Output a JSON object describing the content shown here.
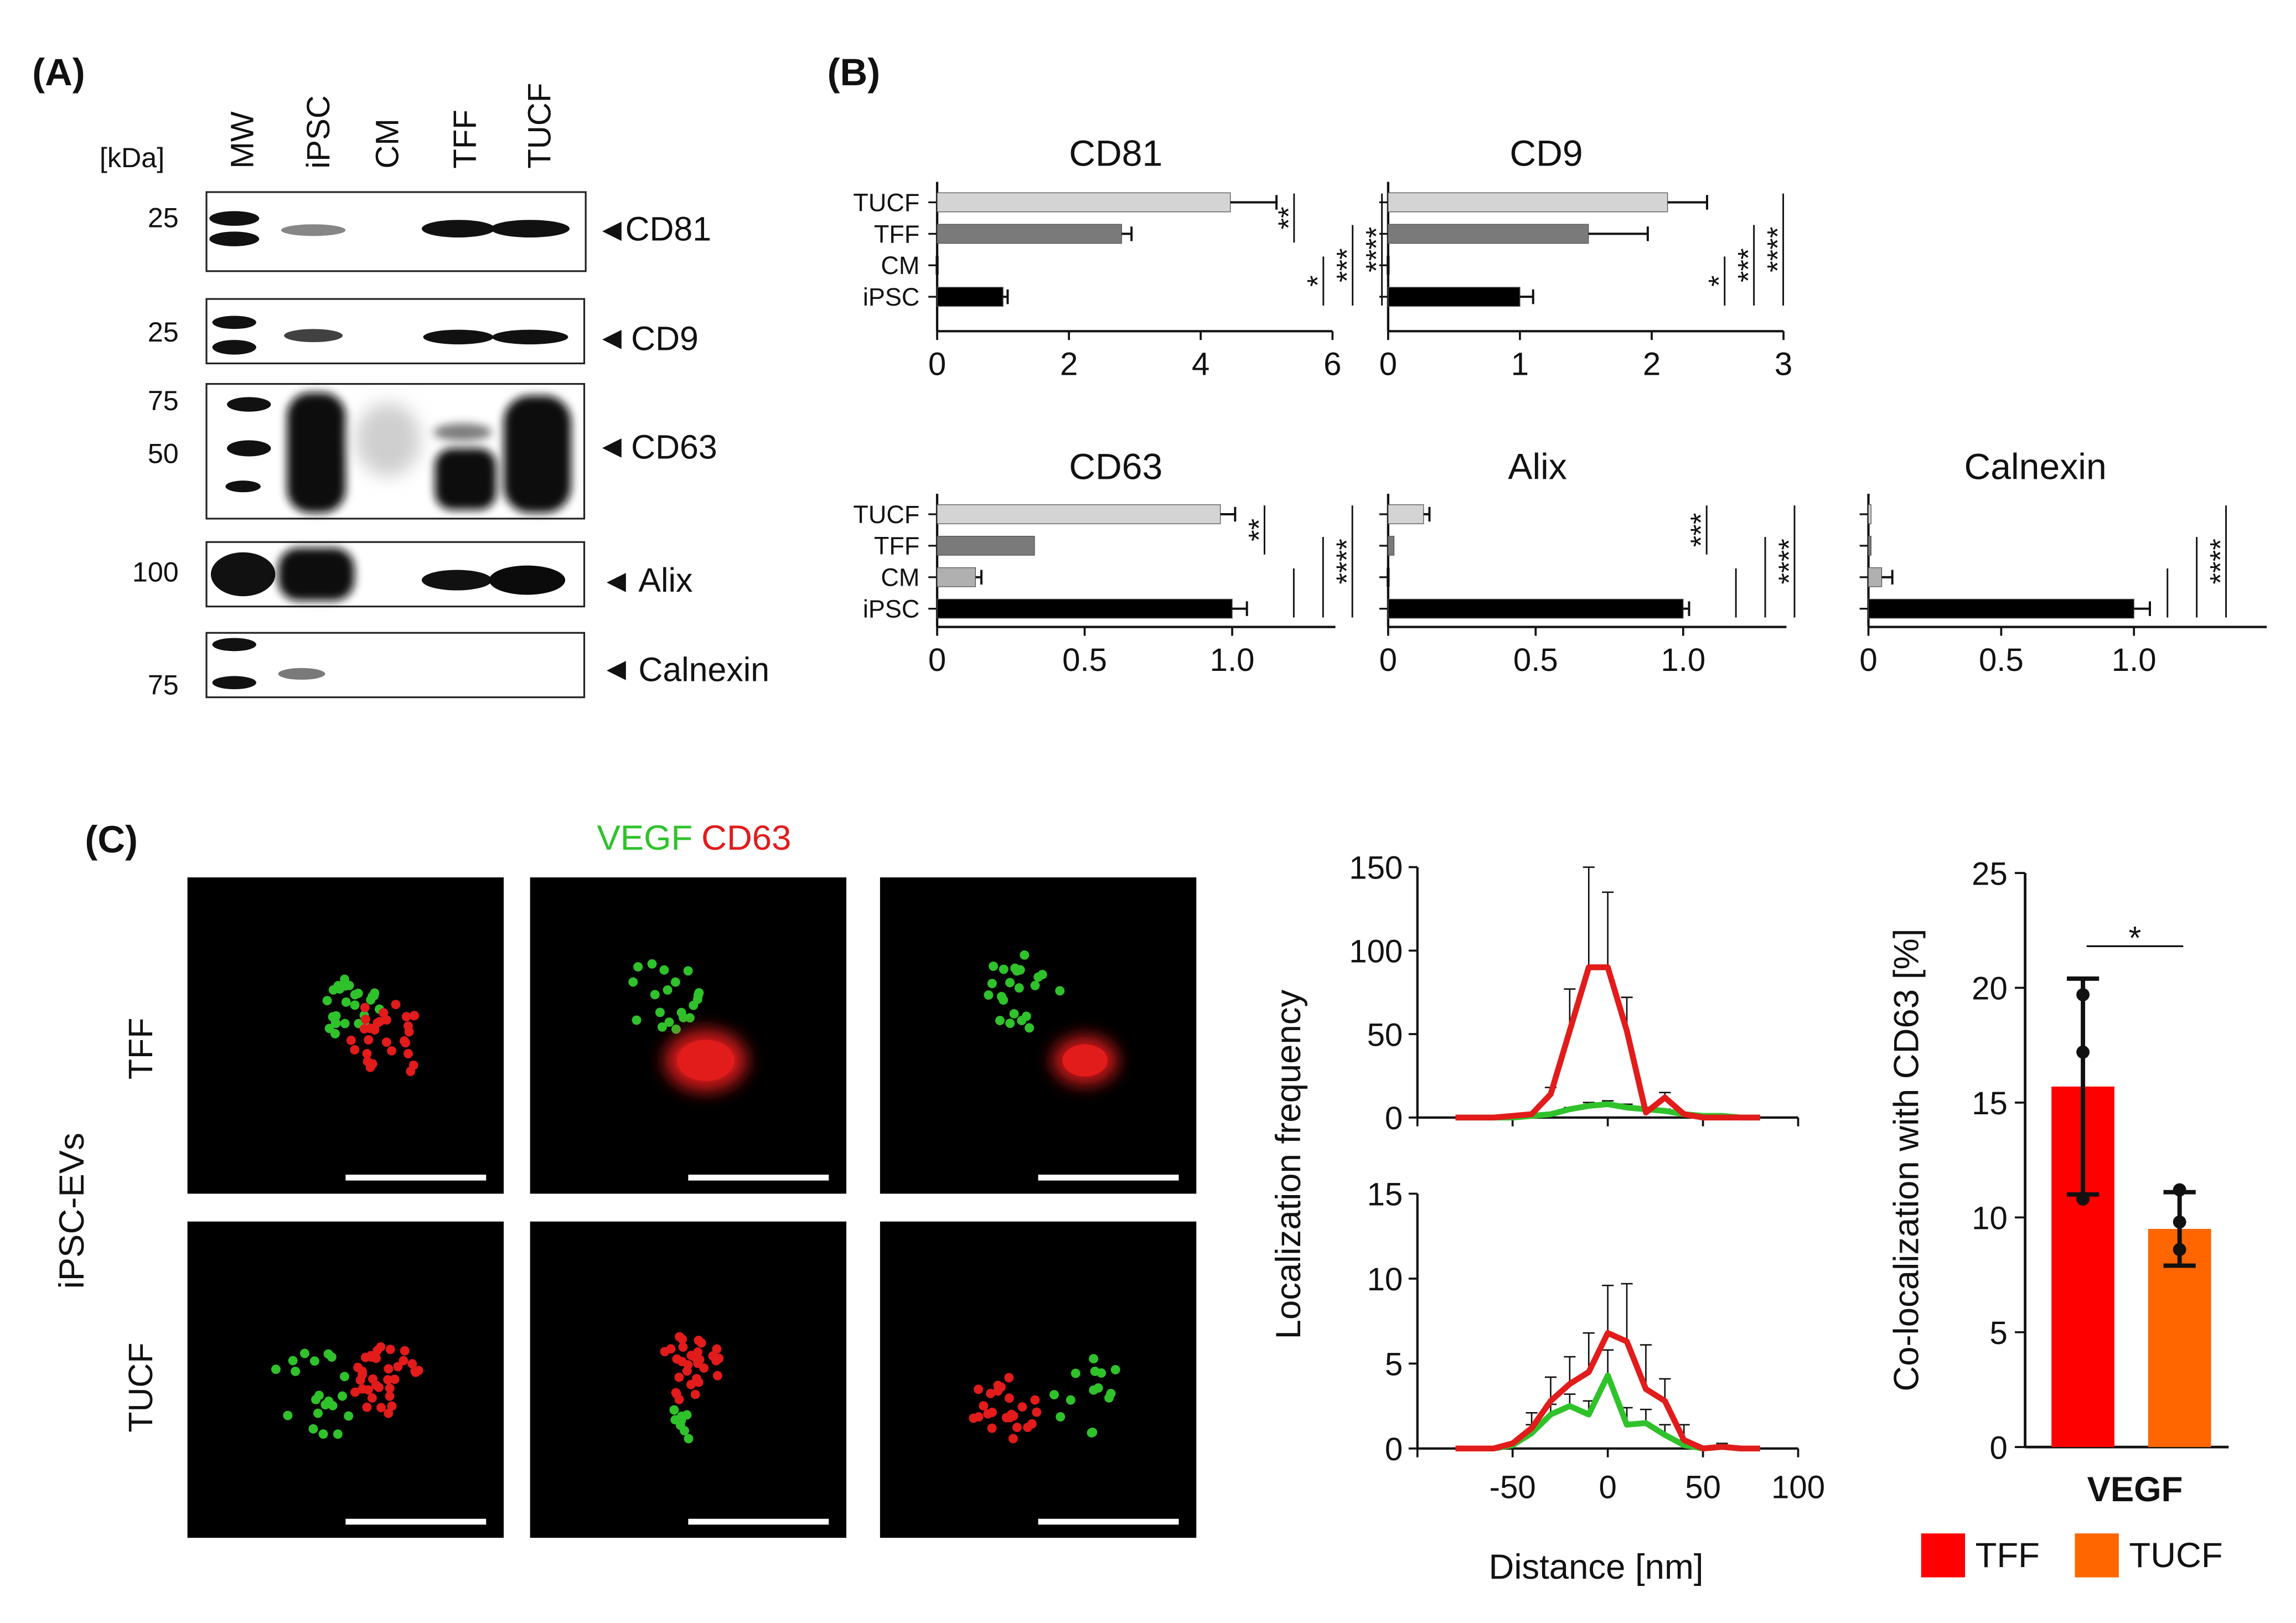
{
  "panel_labels": [
    "(A)",
    "(B)",
    "(C)"
  ],
  "panel_a": {
    "lane_labels": [
      "MW",
      "iPSC",
      "CM",
      "TFF",
      "TUCF"
    ],
    "kda_label": "[kDa]",
    "blots": [
      {
        "marker": "CD81",
        "mw_labels": [
          "25"
        ]
      },
      {
        "marker": "CD9",
        "mw_labels": [
          "25"
        ]
      },
      {
        "marker": "CD63",
        "mw_labels": [
          "75",
          "50"
        ]
      },
      {
        "marker": "Alix",
        "mw_labels": [
          "100"
        ]
      },
      {
        "marker": "Calnexin",
        "mw_labels": [
          "75"
        ]
      }
    ],
    "band_intensity": {
      "CD81": [
        0.85,
        0.35,
        0.0,
        0.8,
        0.85
      ],
      "CD9": [
        0.85,
        0.6,
        0.05,
        0.8,
        0.85
      ],
      "CD63": [
        0.9,
        1.0,
        0.15,
        0.75,
        1.0
      ],
      "Alix": [
        0.9,
        1.0,
        0.0,
        0.75,
        0.95
      ],
      "Calnexin": [
        0.85,
        0.5,
        0.0,
        0.0,
        0.0
      ]
    }
  },
  "panel_b": {
    "category_labels": [
      "TUCF",
      "TFF",
      "CM",
      "iPSC"
    ],
    "charts": [
      {
        "title": "CD81",
        "xticks": [
          "0",
          "2",
          "4",
          "6"
        ],
        "xlim": [
          0,
          6
        ],
        "values": [
          4.45,
          2.8,
          0.0,
          1.0
        ],
        "errors": [
          0.7,
          0.15,
          0.0,
          0.07
        ],
        "show_categories": true,
        "brackets": [
          {
            "from": 1,
            "to": 0,
            "label": "**"
          },
          {
            "from": 3,
            "to": 2,
            "label": "*"
          },
          {
            "from": 3,
            "to": 1,
            "label": "***"
          },
          {
            "from": 3,
            "to": 0,
            "label": "****"
          }
        ]
      },
      {
        "title": "CD9",
        "xticks": [
          "0",
          "1",
          "2",
          "3"
        ],
        "xlim": [
          0,
          3
        ],
        "values": [
          2.12,
          1.52,
          0.0,
          1.0
        ],
        "errors": [
          0.3,
          0.45,
          0.0,
          0.1
        ],
        "show_categories": false,
        "brackets": [
          {
            "from": 3,
            "to": 2,
            "label": "*"
          },
          {
            "from": 3,
            "to": 1,
            "label": "***"
          },
          {
            "from": 3,
            "to": 0,
            "label": "****"
          }
        ]
      },
      {
        "title": "CD63",
        "xticks": [
          "0",
          "0.5",
          "1.0"
        ],
        "xlim": [
          0,
          1.35
        ],
        "values": [
          0.96,
          0.33,
          0.13,
          1.0
        ],
        "errors": [
          0.05,
          0.0,
          0.02,
          0.05
        ],
        "show_categories": true,
        "brackets": [
          {
            "from": 1,
            "to": 0,
            "label": "**"
          },
          {
            "from": 3,
            "to": 2,
            "label": ""
          },
          {
            "from": 3,
            "to": 1,
            "label": ""
          },
          {
            "from": 3,
            "to": 0,
            "label": "****"
          }
        ]
      },
      {
        "title": "Alix",
        "xticks": [
          "0",
          "0.5",
          "1.0"
        ],
        "xlim": [
          0,
          1.35
        ],
        "values": [
          0.12,
          0.02,
          0.0,
          1.0
        ],
        "errors": [
          0.02,
          0.0,
          0.0,
          0.02
        ],
        "show_categories": false,
        "brackets": [
          {
            "from": 1,
            "to": 0,
            "label": "***"
          },
          {
            "from": 3,
            "to": 2,
            "label": ""
          },
          {
            "from": 3,
            "to": 1,
            "label": ""
          },
          {
            "from": 3,
            "to": 0,
            "label": "****"
          }
        ]
      },
      {
        "title": "Calnexin",
        "xticks": [
          "0",
          "0.5",
          "1.0"
        ],
        "xlim": [
          0,
          1.5
        ],
        "values": [
          0.01,
          0.01,
          0.05,
          1.0
        ],
        "errors": [
          0.0,
          0.0,
          0.04,
          0.06
        ],
        "show_categories": false,
        "brackets": [
          {
            "from": 3,
            "to": 2,
            "label": ""
          },
          {
            "from": 3,
            "to": 1,
            "label": ""
          },
          {
            "from": 3,
            "to": 0,
            "label": "****"
          }
        ]
      }
    ]
  },
  "panel_c": {
    "title_vegf": "VEGF",
    "title_cd63": "CD63",
    "group_label": "iPSC-EVs",
    "row_labels": [
      "TFF",
      "TUCF"
    ],
    "colors": {
      "vegf": "#2fc22b",
      "cd63": "#e21b1b",
      "tff": "#ff0000",
      "tucf": "#ff6600"
    }
  },
  "chart_data": [
    {
      "type": "line",
      "title": "",
      "xlabel": "Distance [nm]",
      "ylabel": "Localization frequency",
      "xlim": [
        -100,
        100
      ],
      "ylim": [
        0,
        150
      ],
      "xticks": [
        "-50",
        "0",
        "50",
        "100"
      ],
      "yticks": [
        "0",
        "50",
        "100",
        "150"
      ],
      "x": [
        -80,
        -70,
        -60,
        -50,
        -40,
        -30,
        -20,
        -10,
        0,
        10,
        20,
        30,
        40,
        50,
        60,
        70,
        80
      ],
      "series": [
        {
          "color": "#e21b1b",
          "values": [
            0,
            0,
            0,
            1,
            2,
            14,
            52,
            90,
            90,
            52,
            3,
            12,
            2,
            0,
            0,
            0,
            0
          ],
          "errors": [
            0,
            0,
            0,
            0,
            0,
            4,
            25,
            60,
            45,
            20,
            0,
            3,
            0,
            0,
            0,
            0,
            0
          ]
        },
        {
          "color": "#2fc22b",
          "values": [
            0,
            0,
            0,
            0,
            1,
            2,
            5,
            7,
            8,
            6,
            5,
            4,
            2,
            1,
            1,
            0,
            0
          ],
          "errors": [
            0,
            0,
            0,
            0,
            0,
            0,
            1,
            2,
            2,
            2,
            1,
            1,
            1,
            0,
            0,
            0,
            0
          ]
        }
      ]
    },
    {
      "type": "line",
      "title": "",
      "xlabel": "Distance [nm]",
      "ylabel": "Localization frequency",
      "xlim": [
        -100,
        100
      ],
      "ylim": [
        0,
        15
      ],
      "xticks": [
        "-50",
        "0",
        "50",
        "100"
      ],
      "yticks": [
        "0",
        "5",
        "10",
        "15"
      ],
      "x": [
        -80,
        -70,
        -60,
        -50,
        -40,
        -30,
        -20,
        -10,
        0,
        10,
        20,
        30,
        40,
        50,
        60,
        70,
        80
      ],
      "series": [
        {
          "color": "#e21b1b",
          "values": [
            0,
            0,
            0,
            0.3,
            1.2,
            2.8,
            3.8,
            4.5,
            6.8,
            6.3,
            3.5,
            2.8,
            0.5,
            0,
            0.1,
            0,
            0
          ],
          "errors": [
            0,
            0,
            0,
            0,
            0.9,
            1.4,
            1.6,
            2.3,
            2.8,
            3.4,
            2.6,
            1.3,
            0.9,
            0,
            0.2,
            0,
            0
          ]
        },
        {
          "color": "#2fc22b",
          "values": [
            0,
            0,
            0,
            0.2,
            0.9,
            2.0,
            2.5,
            2.0,
            4.3,
            1.4,
            1.5,
            0.8,
            0.2,
            0,
            0.1,
            0,
            0
          ],
          "errors": [
            0,
            0,
            0,
            0,
            0.5,
            0.6,
            0.7,
            0.8,
            1.5,
            1.0,
            0.8,
            0.6,
            0.3,
            0,
            0.1,
            0,
            0
          ]
        }
      ]
    },
    {
      "type": "bar",
      "title": "",
      "categories": [
        "VEGF"
      ],
      "xlabel": "VEGF",
      "ylabel": "Co-localization with CD63 [%]",
      "ylim": [
        0,
        25
      ],
      "yticks": [
        "0",
        "5",
        "10",
        "15",
        "20",
        "25"
      ],
      "series": [
        {
          "name": "TFF",
          "color": "#ff0000",
          "values": [
            15.7
          ],
          "sd": [
            4.7
          ],
          "points": [
            19.7,
            17.2,
            10.8
          ]
        },
        {
          "name": "TUCF",
          "color": "#ff6600",
          "values": [
            9.5
          ],
          "sd": [
            1.6
          ],
          "points": [
            11.2,
            9.8,
            8.6
          ]
        }
      ],
      "significance": "*"
    }
  ]
}
